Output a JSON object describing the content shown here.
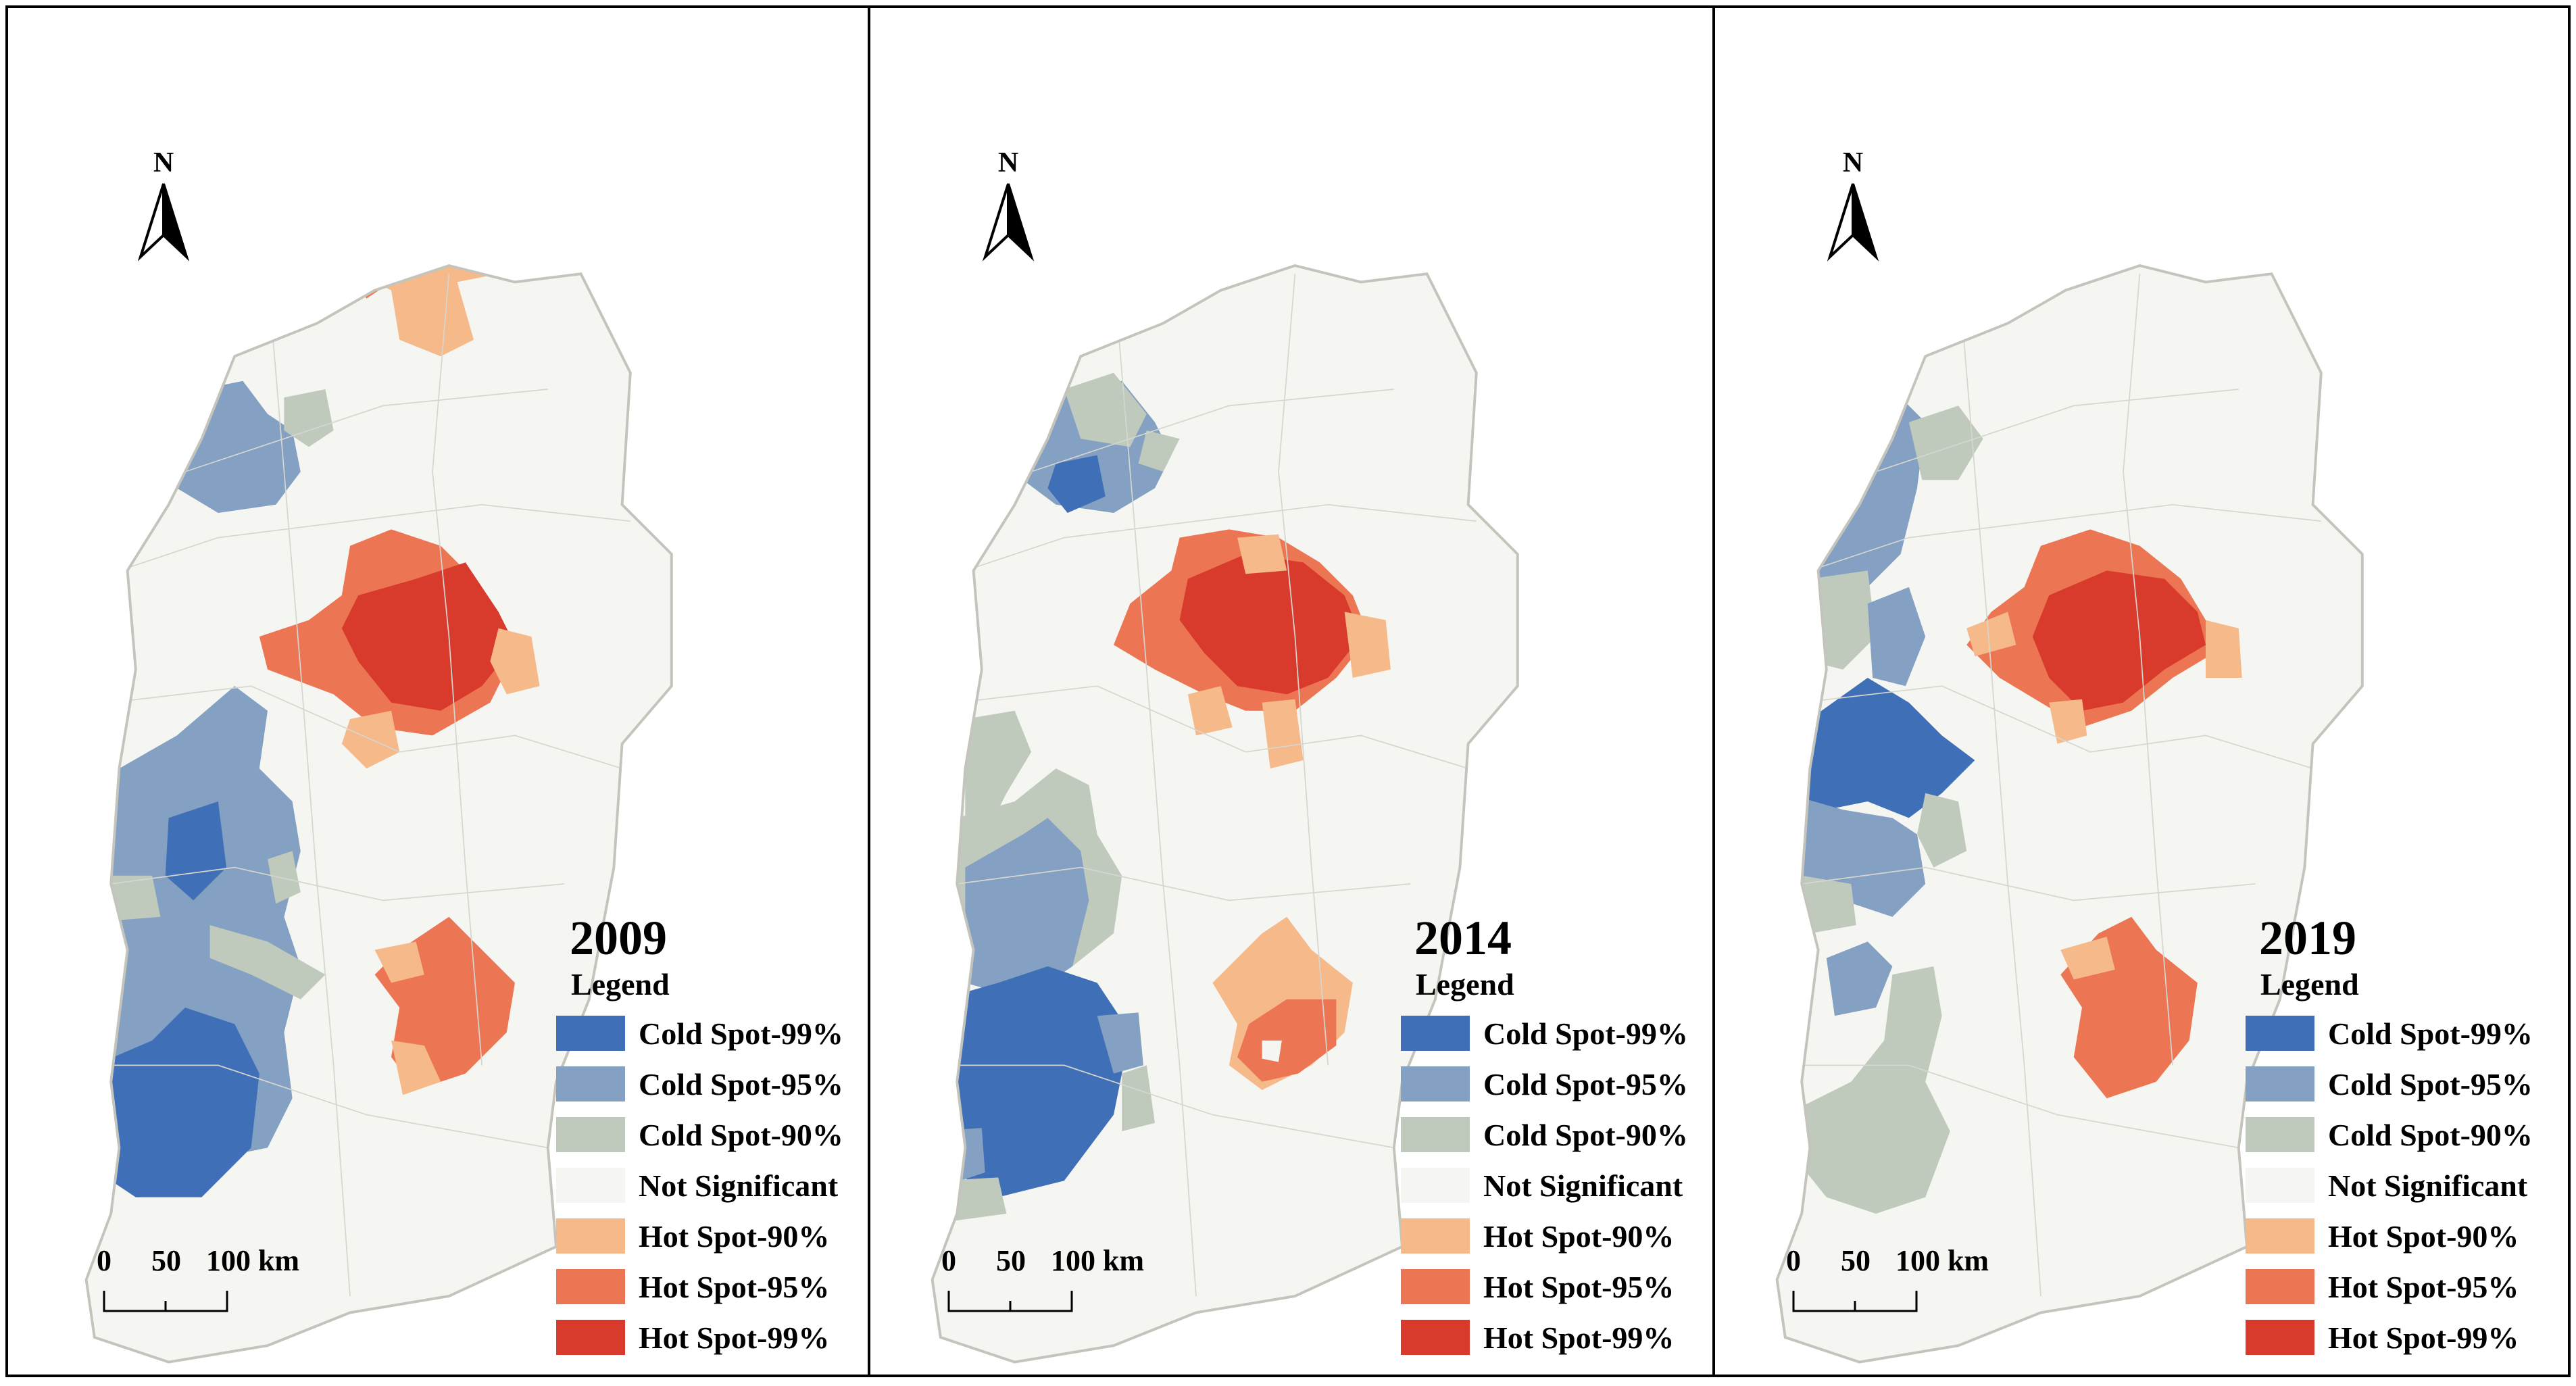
{
  "north_label": "N",
  "legend_title": "Legend",
  "scale": {
    "ticks": [
      "0",
      "50",
      "100 km"
    ]
  },
  "colors": {
    "background": "#ffffff",
    "not_significant": "#f5f5f1",
    "boundary": "#d6d6d0",
    "frame": "#000000",
    "cold99": "#3f6fb6",
    "cold95": "#84a0c2",
    "cold90": "#bfc9bc",
    "hot90": "#f6b98a",
    "hot95": "#ec7553",
    "hot99": "#d83a2c"
  },
  "legend": [
    {
      "key": "cold99",
      "label": "Cold Spot-99%"
    },
    {
      "key": "cold95",
      "label": "Cold Spot-95%"
    },
    {
      "key": "cold90",
      "label": "Cold Spot-90%"
    },
    {
      "key": "not_significant",
      "label": "Not Significant"
    },
    {
      "key": "hot90",
      "label": "Hot Spot-90%"
    },
    {
      "key": "hot95",
      "label": "Hot Spot-95%"
    },
    {
      "key": "hot99",
      "label": "Hot Spot-99%"
    }
  ],
  "maps": [
    {
      "year": "2009"
    },
    {
      "year": "2014"
    },
    {
      "year": "2019"
    }
  ]
}
